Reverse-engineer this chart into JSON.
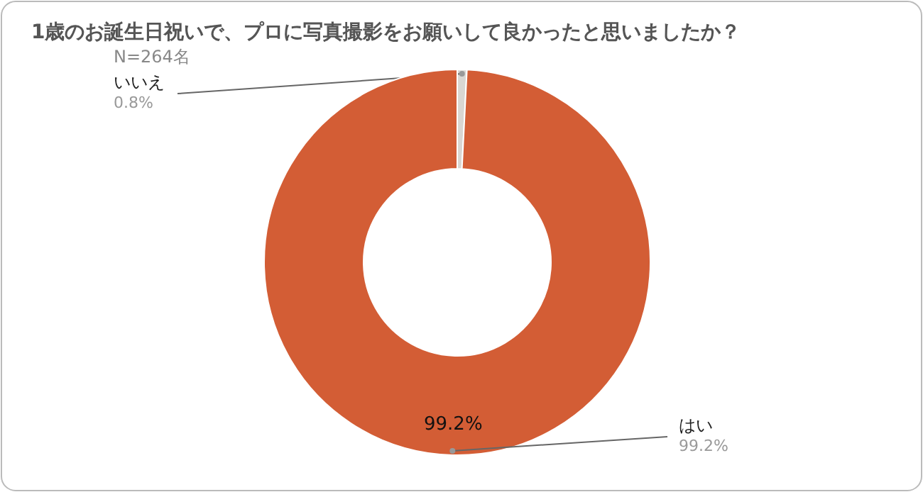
{
  "chart_data": {
    "type": "donut",
    "title": "1歳のお誕生日祝いで、プロに写真撮影をお願いして良かったと思いましたか？",
    "subtitle": "N=264名",
    "categories": [
      "いいえ",
      "はい"
    ],
    "values": [
      0.8,
      99.2
    ],
    "colors": [
      "#d9d6d2",
      "#d35d35"
    ],
    "value_labels": [
      "0.8%",
      "99.2%"
    ],
    "annotations": [
      {
        "text": "99.2%",
        "x": "はい"
      }
    ]
  }
}
